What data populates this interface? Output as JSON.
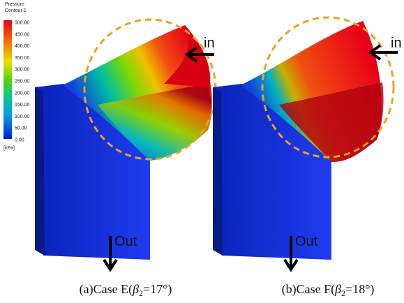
{
  "legend": {
    "title": "Pressure",
    "subtitle": "Contour 1",
    "ticks": [
      "500.00",
      "450.00",
      "400.00",
      "350.00",
      "300.00",
      "250.00",
      "200.00",
      "150.00",
      "100.00",
      "50.00",
      "0.00"
    ],
    "unit": "[kPa]"
  },
  "panels": [
    {
      "inlet": "in",
      "outlet": "Out",
      "caption": {
        "prefix": "(a)Case  E(",
        "symbol": "β",
        "subscript": "2",
        "suffix": "=17°)"
      }
    },
    {
      "inlet": "in",
      "outlet": "Out",
      "caption": {
        "prefix": "(b)Case  F(",
        "symbol": "β",
        "subscript": "2",
        "suffix": "=18°)"
      }
    }
  ]
}
